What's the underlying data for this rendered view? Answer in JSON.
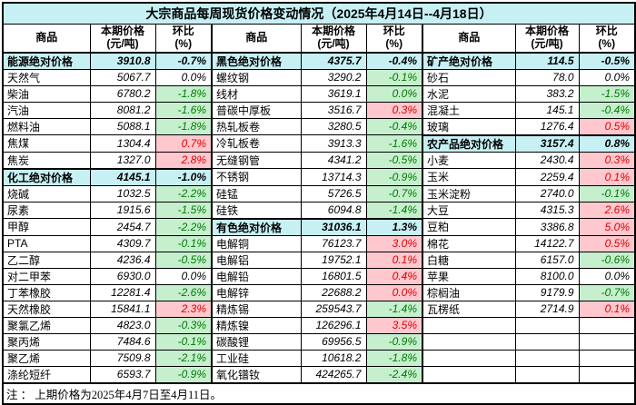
{
  "title": "大宗商品每周现货价格变动情况（2025年4月14日--4月18日）",
  "note": "注 ： 上期价格为2025年4月7日至4月11日。",
  "header": {
    "commodity": "商品",
    "price": "本期价格",
    "price_unit": "(元/吨)",
    "change": "环比",
    "change_unit": "(%)"
  },
  "colors": {
    "category_bg": "#c7f0f4",
    "title_bg": "#c7f0f4",
    "up_bg": "#ffc7ce",
    "up_text": "#e00000",
    "down_bg": "#c6efce",
    "down_text": "#007a00"
  },
  "groups": [
    {
      "rows": [
        {
          "name": "能源绝对价格",
          "price": "3910.8",
          "change": "-0.7%",
          "style": "category"
        },
        {
          "name": "天然气",
          "price": "5067.7",
          "change": "0.0%",
          "style": "flat"
        },
        {
          "name": "柴油",
          "price": "6780.2",
          "change": "-1.8%",
          "style": "down"
        },
        {
          "name": "汽油",
          "price": "8081.2",
          "change": "-1.6%",
          "style": "down"
        },
        {
          "name": "燃料油",
          "price": "5088.1",
          "change": "-1.8%",
          "style": "down"
        },
        {
          "name": "焦煤",
          "price": "1304.4",
          "change": "0.7%",
          "style": "up"
        },
        {
          "name": "焦炭",
          "price": "1327.0",
          "change": "2.8%",
          "style": "up"
        },
        {
          "name": "化工绝对价格",
          "price": "4145.1",
          "change": "-1.0%",
          "style": "category"
        },
        {
          "name": "烧碱",
          "price": "1032.5",
          "change": "-2.2%",
          "style": "down"
        },
        {
          "name": "尿素",
          "price": "1915.6",
          "change": "-1.5%",
          "style": "down"
        },
        {
          "name": "甲醇",
          "price": "2454.7",
          "change": "-2.2%",
          "style": "down"
        },
        {
          "name": "PTA",
          "price": "4309.7",
          "change": "-0.1%",
          "style": "down"
        },
        {
          "name": "乙二醇",
          "price": "4236.4",
          "change": "-0.5%",
          "style": "down"
        },
        {
          "name": "对二甲苯",
          "price": "6930.0",
          "change": "0.0%",
          "style": "flat"
        },
        {
          "name": "丁苯橡胶",
          "price": "12281.4",
          "change": "-2.6%",
          "style": "down"
        },
        {
          "name": "天然橡胶",
          "price": "15841.1",
          "change": "2.3%",
          "style": "up"
        },
        {
          "name": "聚氯乙烯",
          "price": "4823.0",
          "change": "-0.3%",
          "style": "down"
        },
        {
          "name": "聚丙烯",
          "price": "7484.6",
          "change": "-0.1%",
          "style": "down"
        },
        {
          "name": "聚乙烯",
          "price": "7509.8",
          "change": "-2.1%",
          "style": "down"
        },
        {
          "name": "涤纶短纤",
          "price": "6593.7",
          "change": "-0.9%",
          "style": "down"
        }
      ]
    },
    {
      "rows": [
        {
          "name": "黑色绝对价格",
          "price": "4375.7",
          "change": "-0.4%",
          "style": "category"
        },
        {
          "name": "螺纹钢",
          "price": "3290.2",
          "change": "-0.1%",
          "style": "down"
        },
        {
          "name": "线材",
          "price": "3619.1",
          "change": "0.0%",
          "style": "down"
        },
        {
          "name": "普碳中厚板",
          "price": "3516.7",
          "change": "0.3%",
          "style": "up"
        },
        {
          "name": "热轧板卷",
          "price": "3280.5",
          "change": "-0.4%",
          "style": "down"
        },
        {
          "name": "冷轧板卷",
          "price": "3913.3",
          "change": "-1.6%",
          "style": "down"
        },
        {
          "name": "无缝钢管",
          "price": "4341.2",
          "change": "-0.5%",
          "style": "down"
        },
        {
          "name": "不锈钢",
          "price": "13714.3",
          "change": "-0.9%",
          "style": "down"
        },
        {
          "name": "硅锰",
          "price": "5726.5",
          "change": "-0.7%",
          "style": "down"
        },
        {
          "name": "硅铁",
          "price": "6094.8",
          "change": "-1.4%",
          "style": "down"
        },
        {
          "name": "有色绝对价格",
          "price": "31036.1",
          "change": "1.3%",
          "style": "category"
        },
        {
          "name": "电解铜",
          "price": "76123.7",
          "change": "3.0%",
          "style": "up"
        },
        {
          "name": "电解铝",
          "price": "19752.1",
          "change": "0.1%",
          "style": "up"
        },
        {
          "name": "电解铅",
          "price": "16801.5",
          "change": "0.4%",
          "style": "up"
        },
        {
          "name": "电解锌",
          "price": "22688.2",
          "change": "0.0%",
          "style": "up"
        },
        {
          "name": "精炼锡",
          "price": "259543.7",
          "change": "-1.4%",
          "style": "down"
        },
        {
          "name": "精炼镍",
          "price": "126296.1",
          "change": "3.5%",
          "style": "up"
        },
        {
          "name": "碳酸锂",
          "price": "69956.5",
          "change": "-0.9%",
          "style": "down"
        },
        {
          "name": "工业硅",
          "price": "10618.2",
          "change": "-1.8%",
          "style": "down"
        },
        {
          "name": "氧化镨钕",
          "price": "424265.7",
          "change": "-2.4%",
          "style": "down"
        }
      ]
    },
    {
      "rows": [
        {
          "name": "矿产绝对价格",
          "price": "114.5",
          "change": "-0.5%",
          "style": "category"
        },
        {
          "name": "砂石",
          "price": "78.0",
          "change": "0.0%",
          "style": "flat"
        },
        {
          "name": "水泥",
          "price": "383.2",
          "change": "-1.5%",
          "style": "down"
        },
        {
          "name": "混凝土",
          "price": "145.1",
          "change": "-0.4%",
          "style": "down"
        },
        {
          "name": "玻璃",
          "price": "1276.4",
          "change": "0.5%",
          "style": "up"
        },
        {
          "name": "农产品绝对价格",
          "price": "3157.4",
          "change": "0.8%",
          "style": "category"
        },
        {
          "name": "小麦",
          "price": "2430.4",
          "change": "0.3%",
          "style": "up"
        },
        {
          "name": "玉米",
          "price": "2259.4",
          "change": "0.1%",
          "style": "up"
        },
        {
          "name": "玉米淀粉",
          "price": "2740.0",
          "change": "-0.1%",
          "style": "down"
        },
        {
          "name": "大豆",
          "price": "4315.3",
          "change": "2.6%",
          "style": "up"
        },
        {
          "name": "豆粕",
          "price": "3386.8",
          "change": "5.0%",
          "style": "up"
        },
        {
          "name": "棉花",
          "price": "14122.7",
          "change": "0.5%",
          "style": "up"
        },
        {
          "name": "白糖",
          "price": "6157.0",
          "change": "-0.6%",
          "style": "down"
        },
        {
          "name": "苹果",
          "price": "8100.0",
          "change": "0.0%",
          "style": "flat"
        },
        {
          "name": "棕榈油",
          "price": "9179.9",
          "change": "-0.7%",
          "style": "down"
        },
        {
          "name": "瓦楞纸",
          "price": "2714.9",
          "change": "0.1%",
          "style": "up"
        },
        {
          "name": "",
          "price": "",
          "change": "",
          "style": "empty"
        },
        {
          "name": "",
          "price": "",
          "change": "",
          "style": "empty"
        },
        {
          "name": "",
          "price": "",
          "change": "",
          "style": "empty"
        },
        {
          "name": "",
          "price": "",
          "change": "",
          "style": "empty"
        }
      ]
    }
  ]
}
